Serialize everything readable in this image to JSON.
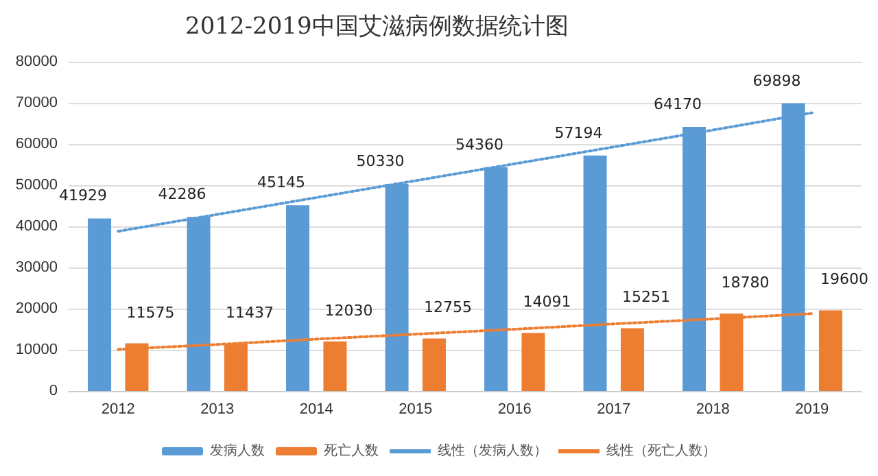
{
  "chart_data": {
    "type": "bar",
    "title": "2012-2019中国艾滋病例数据统计图",
    "categories": [
      "2012",
      "2013",
      "2014",
      "2015",
      "2016",
      "2017",
      "2018",
      "2019"
    ],
    "series": [
      {
        "name": "发病人数",
        "color": "#5b9bd5",
        "values": [
          41929,
          42286,
          45145,
          50330,
          54360,
          57194,
          64170,
          69898
        ],
        "value_labels": [
          "41929",
          "42286",
          "45145",
          "50330",
          "54360",
          "57194",
          "64170",
          "69898"
        ]
      },
      {
        "name": "死亡人数",
        "color": "#ed7d31",
        "values": [
          11575,
          11437,
          12030,
          12755,
          14091,
          15251,
          18780,
          19600
        ],
        "value_labels": [
          "11575",
          "11437",
          "12030",
          "12755",
          "14091",
          "15251",
          "18780",
          "19600"
        ]
      },
      {
        "name": "线性（发病人数）",
        "type": "line",
        "color": "#5b9bd5",
        "line_style": "dotted",
        "marker": "none",
        "values": [
          38800,
          42900,
          47000,
          51100,
          55200,
          59300,
          63400,
          67600
        ]
      },
      {
        "name": "线性（死亡人数）",
        "type": "line",
        "color": "#ed7d31",
        "line_style": "dotted",
        "marker": "none",
        "values": [
          10100,
          11300,
          12600,
          13800,
          15000,
          16300,
          17500,
          18800
        ]
      }
    ],
    "ylim": [
      0,
      80000
    ],
    "yticks": [
      0,
      10000,
      20000,
      30000,
      40000,
      50000,
      60000,
      70000,
      80000
    ],
    "grid": "y",
    "legend": "bottom"
  }
}
